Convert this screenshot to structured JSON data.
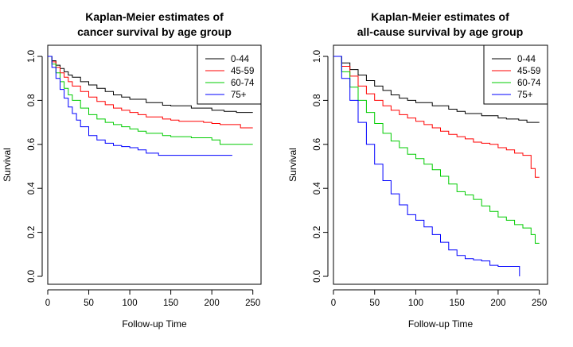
{
  "chart_data": [
    {
      "type": "line",
      "step": true,
      "title": [
        "Kaplan-Meier estimates of",
        "cancer survival by age group"
      ],
      "xlabel": "Follow-up Time",
      "ylabel": "Survival",
      "xlim": [
        0,
        260
      ],
      "ylim": [
        0,
        1.0
      ],
      "xticks": [
        0,
        50,
        100,
        150,
        200,
        250
      ],
      "yticks": [
        0.0,
        0.2,
        0.4,
        0.6,
        0.8,
        1.0
      ],
      "xtick_labels": [
        "0",
        "50",
        "100",
        "150",
        "200",
        "250"
      ],
      "ytick_labels": [
        "0.0",
        "0.2",
        "0.4",
        "0.6",
        "0.8",
        "1.0"
      ],
      "legend": "top-right",
      "series": [
        {
          "name": "0-44",
          "color": "#000000",
          "x": [
            0,
            5,
            10,
            15,
            20,
            25,
            30,
            40,
            50,
            60,
            70,
            80,
            90,
            100,
            120,
            140,
            150,
            175,
            200,
            215,
            230,
            250
          ],
          "y": [
            1.0,
            0.98,
            0.96,
            0.945,
            0.93,
            0.915,
            0.905,
            0.885,
            0.87,
            0.855,
            0.84,
            0.825,
            0.815,
            0.805,
            0.79,
            0.778,
            0.775,
            0.765,
            0.755,
            0.75,
            0.745,
            0.745
          ]
        },
        {
          "name": "45-59",
          "color": "#ff0000",
          "x": [
            0,
            5,
            10,
            15,
            20,
            25,
            30,
            40,
            50,
            60,
            70,
            80,
            90,
            100,
            110,
            120,
            140,
            150,
            160,
            190,
            200,
            210,
            235,
            250
          ],
          "y": [
            1.0,
            0.975,
            0.95,
            0.925,
            0.905,
            0.885,
            0.865,
            0.84,
            0.815,
            0.795,
            0.78,
            0.765,
            0.755,
            0.745,
            0.735,
            0.725,
            0.715,
            0.71,
            0.705,
            0.7,
            0.695,
            0.69,
            0.675,
            0.675
          ]
        },
        {
          "name": "60-74",
          "color": "#00cc00",
          "x": [
            0,
            5,
            10,
            15,
            20,
            25,
            30,
            40,
            50,
            60,
            70,
            80,
            90,
            100,
            110,
            120,
            140,
            150,
            175,
            200,
            210,
            250
          ],
          "y": [
            1.0,
            0.965,
            0.925,
            0.885,
            0.855,
            0.825,
            0.8,
            0.765,
            0.735,
            0.715,
            0.7,
            0.69,
            0.68,
            0.67,
            0.66,
            0.65,
            0.64,
            0.635,
            0.63,
            0.62,
            0.6,
            0.6
          ]
        },
        {
          "name": "75+",
          "color": "#0000ff",
          "x": [
            0,
            5,
            10,
            15,
            20,
            25,
            30,
            35,
            40,
            50,
            60,
            70,
            80,
            90,
            100,
            110,
            120,
            135,
            160,
            190,
            225
          ],
          "y": [
            1.0,
            0.95,
            0.9,
            0.85,
            0.81,
            0.77,
            0.74,
            0.71,
            0.68,
            0.64,
            0.62,
            0.605,
            0.595,
            0.59,
            0.585,
            0.575,
            0.56,
            0.55,
            0.55,
            0.55,
            0.55
          ]
        }
      ]
    },
    {
      "type": "line",
      "step": true,
      "title": [
        "Kaplan-Meier estimates of",
        "all-cause survival by age group"
      ],
      "xlabel": "Follow-up Time",
      "ylabel": "Survival",
      "xlim": [
        0,
        260
      ],
      "ylim": [
        0,
        1.0
      ],
      "xticks": [
        0,
        50,
        100,
        150,
        200,
        250
      ],
      "yticks": [
        0.0,
        0.2,
        0.4,
        0.6,
        0.8,
        1.0
      ],
      "xtick_labels": [
        "0",
        "50",
        "100",
        "150",
        "200",
        "250"
      ],
      "ytick_labels": [
        "0.0",
        "0.2",
        "0.4",
        "0.6",
        "0.8",
        "1.0"
      ],
      "legend": "top-right",
      "series": [
        {
          "name": "0-44",
          "color": "#000000",
          "x": [
            0,
            10,
            20,
            30,
            40,
            50,
            60,
            70,
            80,
            90,
            100,
            120,
            140,
            150,
            160,
            180,
            200,
            210,
            225,
            235,
            245,
            250
          ],
          "y": [
            1.0,
            0.97,
            0.94,
            0.915,
            0.89,
            0.865,
            0.845,
            0.825,
            0.81,
            0.8,
            0.79,
            0.775,
            0.76,
            0.75,
            0.74,
            0.73,
            0.72,
            0.715,
            0.71,
            0.7,
            0.7,
            0.7
          ]
        },
        {
          "name": "45-59",
          "color": "#ff0000",
          "x": [
            0,
            10,
            20,
            30,
            40,
            50,
            60,
            70,
            80,
            90,
            100,
            110,
            120,
            130,
            140,
            150,
            160,
            170,
            180,
            190,
            200,
            210,
            220,
            230,
            240,
            245,
            250
          ],
          "y": [
            1.0,
            0.955,
            0.91,
            0.865,
            0.83,
            0.8,
            0.775,
            0.755,
            0.735,
            0.72,
            0.705,
            0.69,
            0.675,
            0.66,
            0.645,
            0.635,
            0.625,
            0.61,
            0.605,
            0.6,
            0.585,
            0.575,
            0.56,
            0.55,
            0.49,
            0.45,
            0.45
          ]
        },
        {
          "name": "60-74",
          "color": "#00cc00",
          "x": [
            0,
            10,
            20,
            30,
            40,
            50,
            60,
            70,
            80,
            90,
            100,
            110,
            120,
            130,
            140,
            150,
            160,
            170,
            180,
            190,
            200,
            210,
            220,
            230,
            240,
            245,
            250
          ],
          "y": [
            1.0,
            0.93,
            0.86,
            0.8,
            0.745,
            0.695,
            0.65,
            0.615,
            0.585,
            0.555,
            0.535,
            0.51,
            0.485,
            0.455,
            0.42,
            0.385,
            0.37,
            0.35,
            0.32,
            0.295,
            0.27,
            0.255,
            0.235,
            0.22,
            0.19,
            0.15,
            0.15
          ]
        },
        {
          "name": "75+",
          "color": "#0000ff",
          "x": [
            0,
            10,
            20,
            30,
            40,
            50,
            60,
            70,
            80,
            90,
            100,
            110,
            120,
            130,
            140,
            150,
            160,
            170,
            180,
            190,
            200,
            210,
            225,
            226
          ],
          "y": [
            1.0,
            0.9,
            0.8,
            0.7,
            0.6,
            0.51,
            0.435,
            0.375,
            0.325,
            0.28,
            0.255,
            0.225,
            0.19,
            0.155,
            0.12,
            0.095,
            0.08,
            0.075,
            0.07,
            0.05,
            0.045,
            0.045,
            0.045,
            0.0
          ]
        }
      ]
    }
  ]
}
